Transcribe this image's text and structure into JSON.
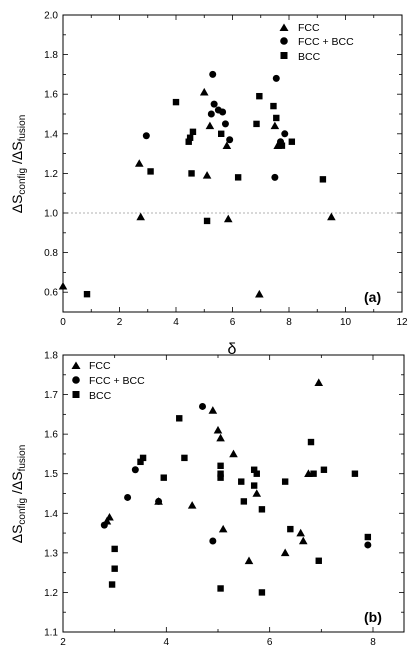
{
  "chart_data": [
    {
      "type": "scatter",
      "panel_label": "(a)",
      "xlabel": "δ",
      "ylabel_main": "ΔS",
      "ylabel_sub1": "config",
      "ylabel_mid": " /ΔS",
      "ylabel_sub2": "fusion",
      "xlim": [
        0,
        12
      ],
      "ylim": [
        0.5,
        2.0
      ],
      "xticks": [
        "0",
        "2",
        "4",
        "6",
        "8",
        "10",
        "12"
      ],
      "yticks": [
        "0.6",
        "0.8",
        "1.0",
        "1.2",
        "1.4",
        "1.6",
        "1.8",
        "2.0"
      ],
      "reference_line_y": 1.0,
      "legend_position": "top-right",
      "series": [
        {
          "name": "FCC",
          "marker": "triangle",
          "points": [
            [
              0.0,
              0.63
            ],
            [
              2.7,
              1.25
            ],
            [
              2.75,
              0.98
            ],
            [
              5.0,
              1.61
            ],
            [
              5.1,
              1.19
            ],
            [
              5.2,
              1.44
            ],
            [
              5.8,
              1.34
            ],
            [
              5.85,
              0.97
            ],
            [
              6.95,
              0.59
            ],
            [
              7.5,
              1.44
            ],
            [
              7.6,
              1.34
            ],
            [
              9.5,
              0.98
            ]
          ]
        },
        {
          "name": "FCC + BCC",
          "marker": "circle",
          "points": [
            [
              2.95,
              1.39
            ],
            [
              5.25,
              1.5
            ],
            [
              5.3,
              1.7
            ],
            [
              5.35,
              1.55
            ],
            [
              5.5,
              1.52
            ],
            [
              5.65,
              1.51
            ],
            [
              5.75,
              1.45
            ],
            [
              5.9,
              1.37
            ],
            [
              7.5,
              1.18
            ],
            [
              7.55,
              1.68
            ],
            [
              7.7,
              1.36
            ],
            [
              7.85,
              1.4
            ]
          ]
        },
        {
          "name": "BCC",
          "marker": "square",
          "points": [
            [
              0.85,
              0.59
            ],
            [
              3.1,
              1.21
            ],
            [
              4.0,
              1.56
            ],
            [
              4.45,
              1.36
            ],
            [
              4.5,
              1.38
            ],
            [
              4.55,
              1.2
            ],
            [
              4.6,
              1.41
            ],
            [
              5.1,
              0.96
            ],
            [
              5.6,
              1.4
            ],
            [
              6.2,
              1.18
            ],
            [
              6.85,
              1.45
            ],
            [
              6.95,
              1.59
            ],
            [
              7.45,
              1.54
            ],
            [
              7.55,
              1.48
            ],
            [
              7.75,
              1.34
            ],
            [
              8.1,
              1.36
            ],
            [
              9.2,
              1.17
            ]
          ]
        }
      ]
    },
    {
      "type": "scatter",
      "panel_label": "(b)",
      "xlabel": "",
      "ylabel_main": "ΔS",
      "ylabel_sub1": "config",
      "ylabel_mid": " /ΔS",
      "ylabel_sub2": "fusion",
      "xlim": [
        2,
        8.6
      ],
      "ylim": [
        1.1,
        1.8
      ],
      "xticks": [
        "2",
        "4",
        "6",
        "8"
      ],
      "yticks": [
        "1.1",
        "1.2",
        "1.3",
        "1.4",
        "1.5",
        "1.6",
        "1.7",
        "1.8"
      ],
      "legend_position": "top-left",
      "series": [
        {
          "name": "FCC",
          "marker": "triangle",
          "points": [
            [
              2.85,
              1.38
            ],
            [
              2.9,
              1.39
            ],
            [
              3.85,
              1.43
            ],
            [
              4.5,
              1.42
            ],
            [
              4.9,
              1.66
            ],
            [
              5.0,
              1.61
            ],
            [
              5.05,
              1.59
            ],
            [
              5.1,
              1.36
            ],
            [
              5.3,
              1.55
            ],
            [
              5.6,
              1.28
            ],
            [
              5.75,
              1.45
            ],
            [
              6.3,
              1.3
            ],
            [
              6.6,
              1.35
            ],
            [
              6.65,
              1.33
            ],
            [
              6.75,
              1.5
            ],
            [
              6.95,
              1.73
            ]
          ]
        },
        {
          "name": "FCC + BCC",
          "marker": "circle",
          "points": [
            [
              2.8,
              1.37
            ],
            [
              3.25,
              1.44
            ],
            [
              3.4,
              1.51
            ],
            [
              3.85,
              1.43
            ],
            [
              4.7,
              1.67
            ],
            [
              4.9,
              1.33
            ],
            [
              7.9,
              1.32
            ]
          ]
        },
        {
          "name": "BCC",
          "marker": "square",
          "points": [
            [
              2.95,
              1.22
            ],
            [
              3.0,
              1.26
            ],
            [
              3.0,
              1.31
            ],
            [
              3.5,
              1.53
            ],
            [
              3.55,
              1.54
            ],
            [
              3.95,
              1.49
            ],
            [
              4.25,
              1.64
            ],
            [
              4.35,
              1.54
            ],
            [
              5.05,
              1.52
            ],
            [
              5.05,
              1.5
            ],
            [
              5.05,
              1.49
            ],
            [
              5.05,
              1.21
            ],
            [
              5.45,
              1.48
            ],
            [
              5.5,
              1.43
            ],
            [
              5.7,
              1.47
            ],
            [
              5.7,
              1.51
            ],
            [
              5.75,
              1.5
            ],
            [
              5.85,
              1.41
            ],
            [
              5.85,
              1.2
            ],
            [
              6.3,
              1.48
            ],
            [
              6.4,
              1.36
            ],
            [
              6.8,
              1.58
            ],
            [
              6.85,
              1.5
            ],
            [
              6.95,
              1.28
            ],
            [
              7.05,
              1.51
            ],
            [
              7.65,
              1.5
            ],
            [
              7.9,
              1.34
            ]
          ]
        }
      ]
    }
  ]
}
